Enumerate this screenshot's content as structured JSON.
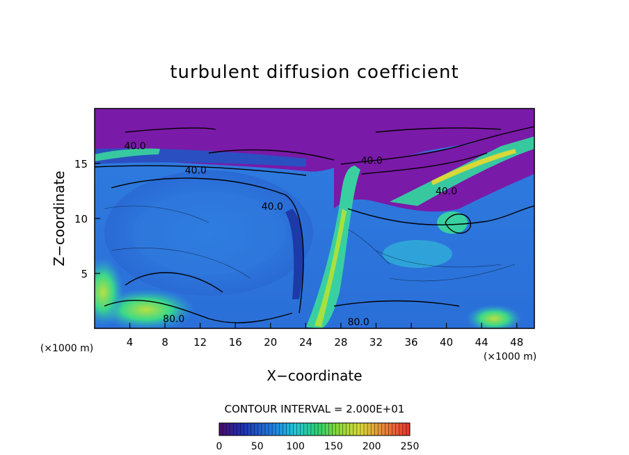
{
  "chart_data": {
    "type": "heatmap",
    "title": "turbulent diffusion coefficient",
    "xlabel": "X−coordinate",
    "ylabel": "Z−coordinate",
    "x_unit_left": "(×1000 m)",
    "x_unit_right": "(×1000 m)",
    "xlim": [
      0,
      50
    ],
    "ylim": [
      0,
      20
    ],
    "x_ticks": [
      4,
      8,
      12,
      16,
      20,
      24,
      28,
      32,
      36,
      40,
      44,
      48
    ],
    "y_ticks": [
      5,
      10,
      15
    ],
    "contour_interval_text": "CONTOUR INTERVAL = 2.000E+01",
    "contour_labels": [
      {
        "text": "40.0",
        "x": 4.6,
        "z": 16.6
      },
      {
        "text": "40.0",
        "x": 11.5,
        "z": 14.4
      },
      {
        "text": "40.0",
        "x": 20.2,
        "z": 11.1
      },
      {
        "text": "40.0",
        "x": 31.5,
        "z": 15.3
      },
      {
        "text": "40.0",
        "x": 40.0,
        "z": 12.5
      },
      {
        "text": "80.0",
        "x": 9.0,
        "z": 0.9
      },
      {
        "text": "80.0",
        "x": 30.0,
        "z": 0.6
      }
    ],
    "colorbar": {
      "min": 0,
      "max": 250,
      "tick_labels": [
        "0",
        "50",
        "100",
        "150",
        "200",
        "250"
      ],
      "tick_values": [
        0,
        50,
        100,
        150,
        200,
        250
      ]
    }
  }
}
